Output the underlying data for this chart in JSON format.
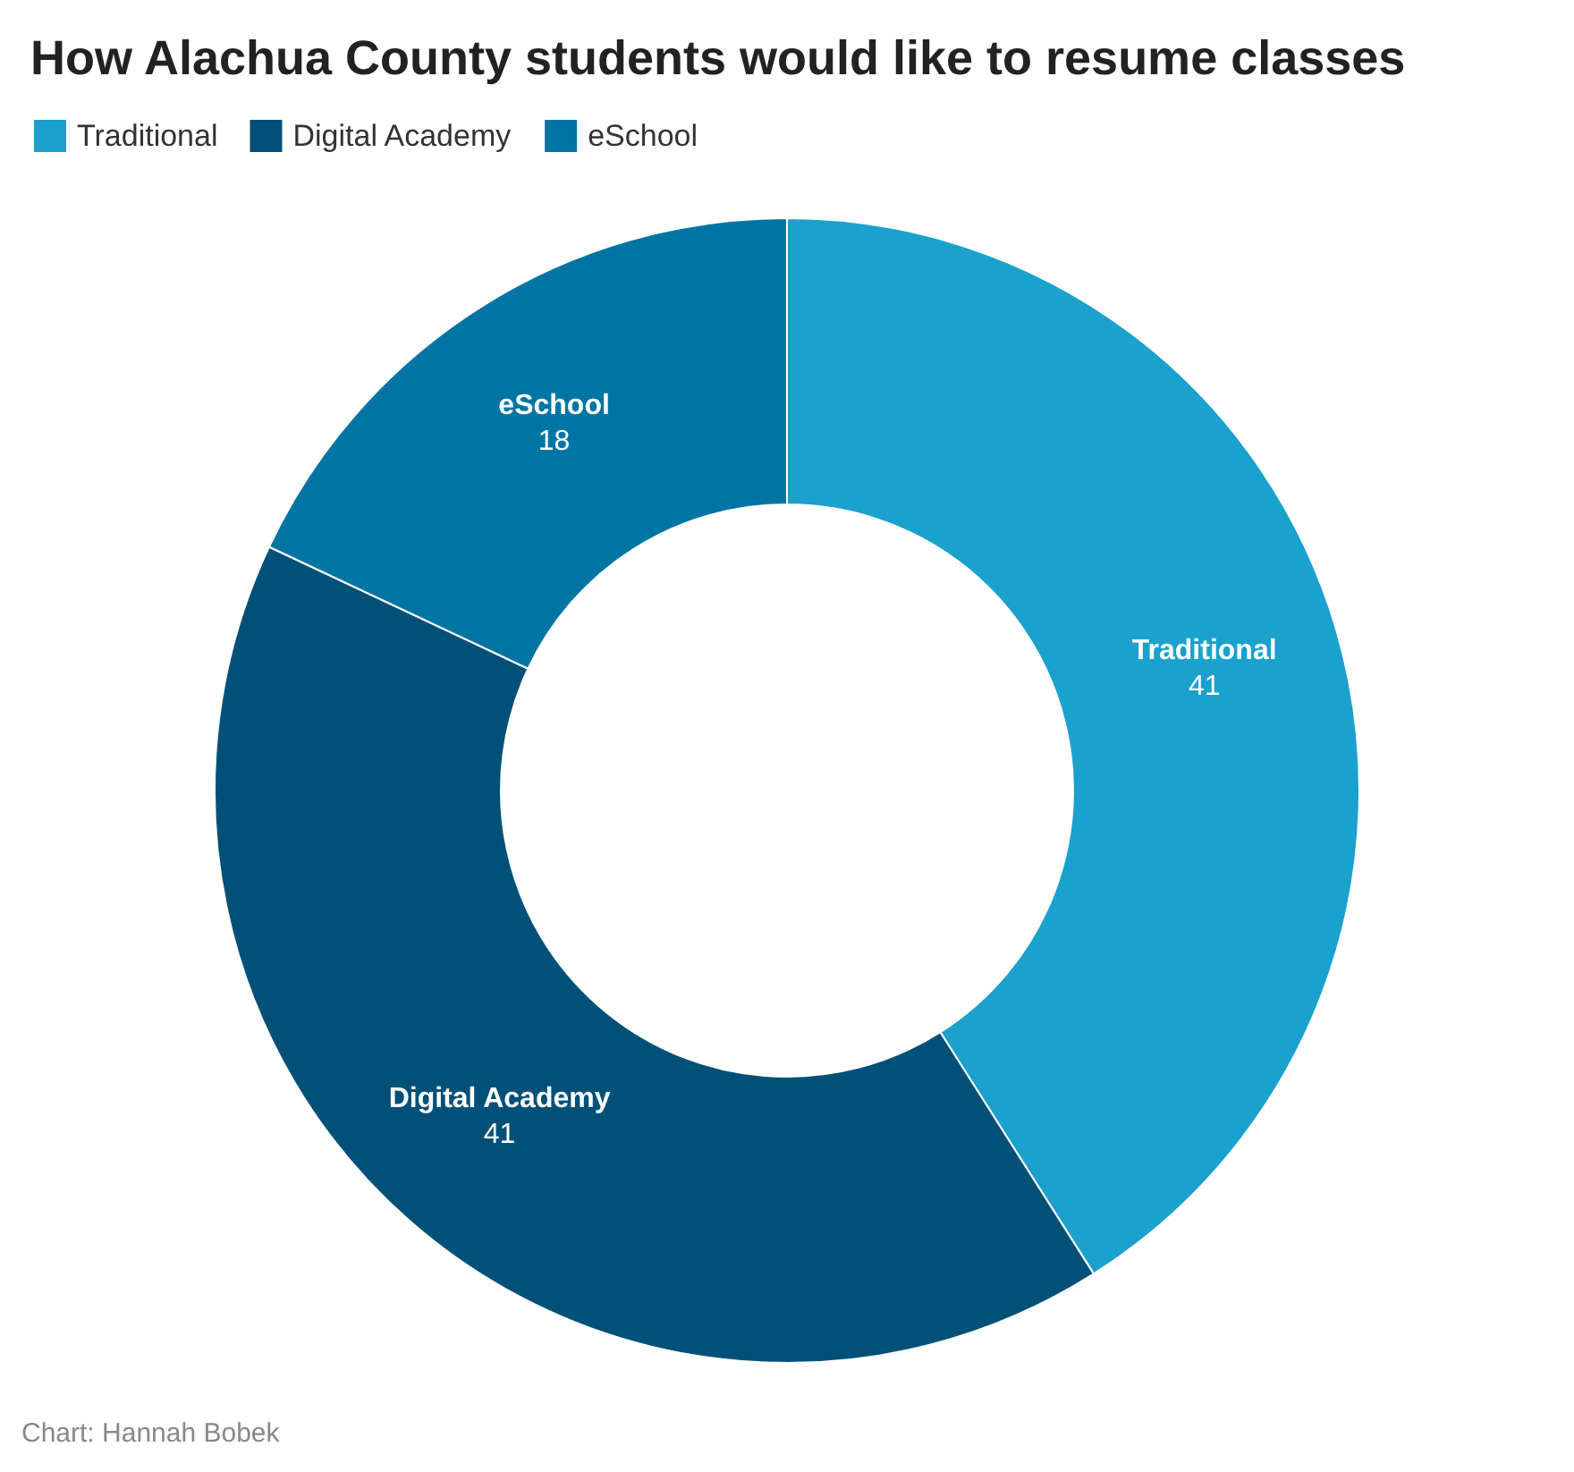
{
  "chart_data": {
    "type": "donut",
    "title": "How Alachua County students would like to resume classes",
    "categories": [
      "Traditional",
      "Digital Academy",
      "eSchool"
    ],
    "values": [
      41,
      41,
      18
    ],
    "colors": [
      "#1aa1cd",
      "#005077",
      "#0075a3"
    ],
    "legend": "top left",
    "data_labels": true,
    "annotations": [
      "Chart: Hannah Bobek"
    ]
  }
}
